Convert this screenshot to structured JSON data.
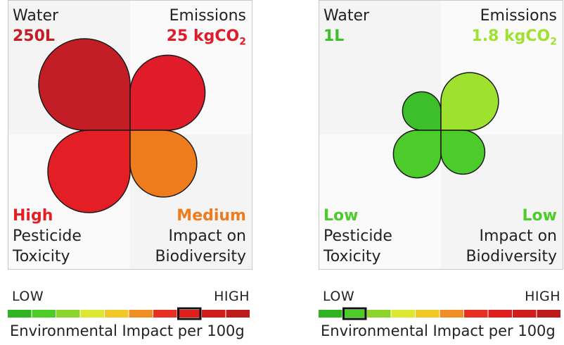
{
  "colors": {
    "background": "#fafafa",
    "quadrant_shade": "#efefef",
    "outline": "#1a1a1a",
    "scale": [
      "#2fb31e",
      "#4ccc27",
      "#8dd42a",
      "#dde631",
      "#f2c827",
      "#ee8e23",
      "#e92f22",
      "#e11d1d",
      "#d11c1c",
      "#bd1a1a"
    ]
  },
  "panels": [
    {
      "water": {
        "label": "Water",
        "value": "250L",
        "color": "#c31e25",
        "size": 1.0
      },
      "emissions": {
        "label": "Emissions",
        "value": "25 kgCO",
        "subscript": "2",
        "color": "#e01c2a",
        "size": 0.82
      },
      "pesticide": {
        "level": "High",
        "label_line1": "Pesticide",
        "label_line2": "Toxicity",
        "color": "#e31e24",
        "size": 0.9
      },
      "biodiversity": {
        "level": "Medium",
        "label_line1": "Impact on",
        "label_line2": "Biodiversity",
        "color": "#ee7b1c",
        "size": 0.73
      },
      "scale": {
        "low": "LOW",
        "high": "HIGH",
        "caption": "Environmental Impact per 100g",
        "selected_index": 7
      }
    },
    {
      "water": {
        "label": "Water",
        "value": "1L",
        "color": "#3cbf2a",
        "size": 0.42
      },
      "emissions": {
        "label": "Emissions",
        "value": "1.8 kgCO",
        "subscript": "2",
        "color": "#9ee22f",
        "size": 0.63
      },
      "pesticide": {
        "level": "Low",
        "label_line1": "Pesticide",
        "label_line2": "Toxicity",
        "color": "#4ccc2a",
        "size": 0.52
      },
      "biodiversity": {
        "level": "Low",
        "label_line1": "Impact on",
        "label_line2": "Biodiversity",
        "color": "#4ccc2a",
        "size": 0.48
      },
      "scale": {
        "low": "LOW",
        "high": "HIGH",
        "caption": "Environmental Impact per 100g",
        "selected_index": 1
      }
    }
  ]
}
